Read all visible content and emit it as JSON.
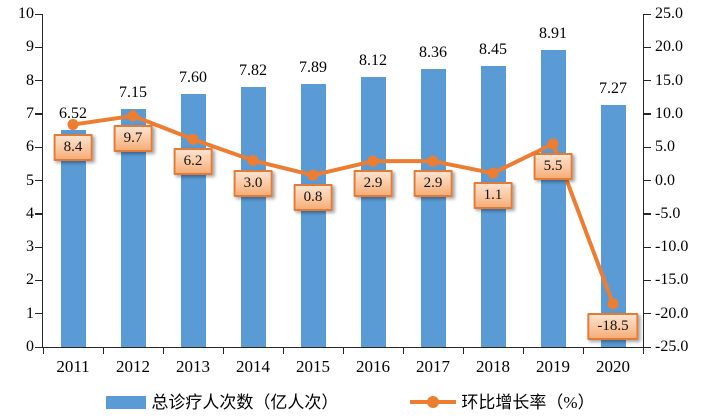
{
  "chart_data": {
    "type": "bar",
    "subtype": "combo-bar-line",
    "categories": [
      "2011",
      "2012",
      "2013",
      "2014",
      "2015",
      "2016",
      "2017",
      "2018",
      "2019",
      "2020"
    ],
    "series": [
      {
        "name": "总诊疗人次数（亿人次）",
        "type": "bar",
        "axis": "left",
        "color": "#5B9BD5",
        "values": [
          6.52,
          7.15,
          7.6,
          7.82,
          7.89,
          8.12,
          8.36,
          8.45,
          8.91,
          7.27
        ],
        "labels": [
          "6.52",
          "7.15",
          "7.60",
          "7.82",
          "7.89",
          "8.12",
          "8.36",
          "8.45",
          "8.91",
          "7.27"
        ]
      },
      {
        "name": "环比增长率（%）",
        "type": "line",
        "axis": "right",
        "color": "#ED7D31",
        "values": [
          8.4,
          9.7,
          6.2,
          3.0,
          0.8,
          2.9,
          2.9,
          1.1,
          5.5,
          -18.5
        ],
        "labels": [
          "8.4",
          "9.7",
          "6.2",
          "3.0",
          "0.8",
          "2.9",
          "2.9",
          "1.1",
          "5.5",
          "-18.5"
        ]
      }
    ],
    "left_axis": {
      "min": 0,
      "max": 10,
      "step": 1,
      "ticks": [
        "10",
        "9",
        "8",
        "7",
        "6",
        "5",
        "4",
        "3",
        "2",
        "1",
        "0"
      ]
    },
    "right_axis": {
      "min": -25,
      "max": 25,
      "step": 5,
      "ticks": [
        "25.0",
        "20.0",
        "15.0",
        "10.0",
        "5.0",
        "0.0",
        "-5.0",
        "-10.0",
        "-15.0",
        "-20.0",
        "-25.0"
      ]
    },
    "grid": false,
    "legend_position": "bottom",
    "colors": {
      "bar": "#5B9BD5",
      "line": "#ED7D31",
      "label_box_border": "#E07B39",
      "axis": "#262626"
    }
  }
}
